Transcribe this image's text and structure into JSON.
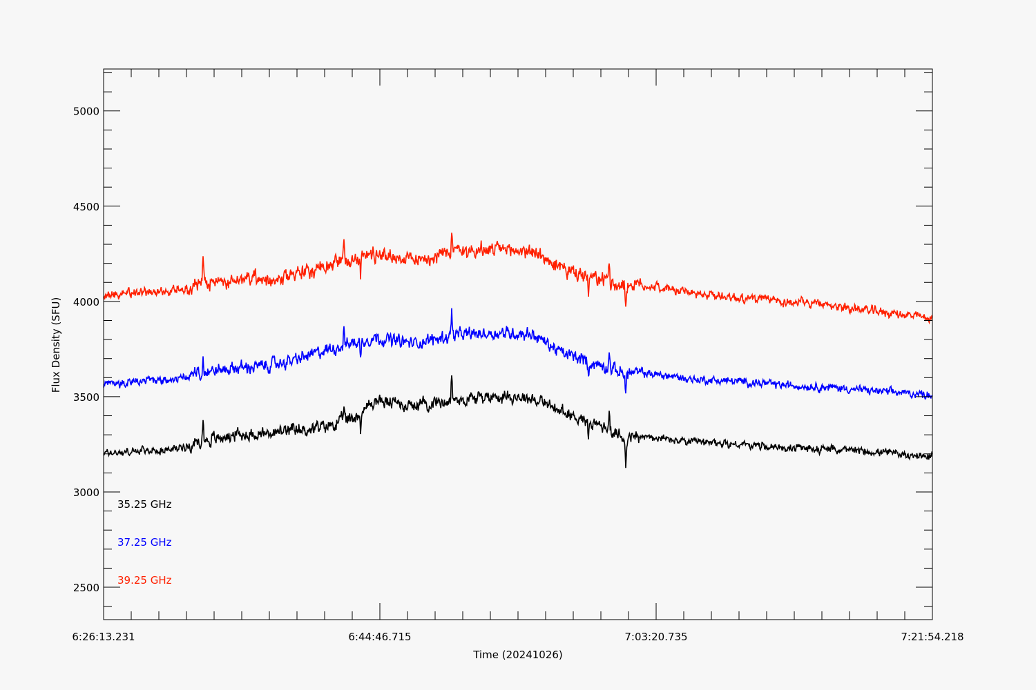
{
  "chart_data": {
    "type": "line",
    "title": "",
    "xlabel": "Time (20241026)",
    "ylabel": "Flux Density (SFU)",
    "xlim": [
      "6:26:13.231",
      "7:21:54.218"
    ],
    "ylim": [
      2330,
      5220
    ],
    "x_tick_labels": [
      "6:26:13.231",
      "6:44:46.715",
      "7:03:20.735",
      "7:21:54.218"
    ],
    "y_ticks": [
      2500,
      3000,
      3500,
      4000,
      4500,
      5000
    ],
    "grid": false,
    "legend_position": "bottom-left",
    "series": [
      {
        "name": "35.25 GHz",
        "color": "#000000",
        "noise": 28,
        "x": [
          "6:26:13",
          "6:28:00",
          "6:31:00",
          "6:33:00",
          "6:35:00",
          "6:37:00",
          "6:39:00",
          "6:41:00",
          "6:43:00",
          "6:44:30",
          "6:47:00",
          "6:50:00",
          "6:53:00",
          "6:55:00",
          "6:57:00",
          "6:59:00",
          "7:01:00",
          "7:03:00",
          "7:06:00",
          "7:09:00",
          "7:12:00",
          "7:15:00",
          "7:18:00",
          "7:21:54"
        ],
        "y": [
          3205,
          3210,
          3225,
          3270,
          3300,
          3305,
          3320,
          3340,
          3390,
          3480,
          3455,
          3485,
          3505,
          3495,
          3420,
          3370,
          3290,
          3285,
          3260,
          3250,
          3230,
          3225,
          3210,
          3185
        ]
      },
      {
        "name": "37.25 GHz",
        "color": "#0000ff",
        "noise": 28,
        "x": [
          "6:26:13",
          "6:28:00",
          "6:31:00",
          "6:33:00",
          "6:35:00",
          "6:37:00",
          "6:39:00",
          "6:41:00",
          "6:43:00",
          "6:44:30",
          "6:47:00",
          "6:50:00",
          "6:53:00",
          "6:55:00",
          "6:57:00",
          "6:59:00",
          "7:01:00",
          "7:03:00",
          "7:06:00",
          "7:09:00",
          "7:12:00",
          "7:15:00",
          "7:18:00",
          "7:21:54"
        ],
        "y": [
          3560,
          3575,
          3590,
          3630,
          3650,
          3660,
          3690,
          3740,
          3785,
          3810,
          3780,
          3825,
          3835,
          3830,
          3730,
          3680,
          3630,
          3620,
          3590,
          3580,
          3560,
          3550,
          3530,
          3510
        ]
      },
      {
        "name": "39.25 GHz",
        "color": "#ff2000",
        "noise": 32,
        "x": [
          "6:26:13",
          "6:28:00",
          "6:31:00",
          "6:33:00",
          "6:35:00",
          "6:37:00",
          "6:39:00",
          "6:41:00",
          "6:43:00",
          "6:44:30",
          "6:47:00",
          "6:50:00",
          "6:53:00",
          "6:55:00",
          "6:57:00",
          "6:59:00",
          "7:01:00",
          "7:03:00",
          "7:06:00",
          "7:09:00",
          "7:12:00",
          "7:15:00",
          "7:18:00",
          "7:21:54"
        ],
        "y": [
          4030,
          4045,
          4060,
          4090,
          4110,
          4120,
          4140,
          4180,
          4230,
          4250,
          4220,
          4265,
          4270,
          4265,
          4170,
          4120,
          4090,
          4080,
          4040,
          4020,
          4000,
          3980,
          3950,
          3910
        ]
      }
    ]
  }
}
